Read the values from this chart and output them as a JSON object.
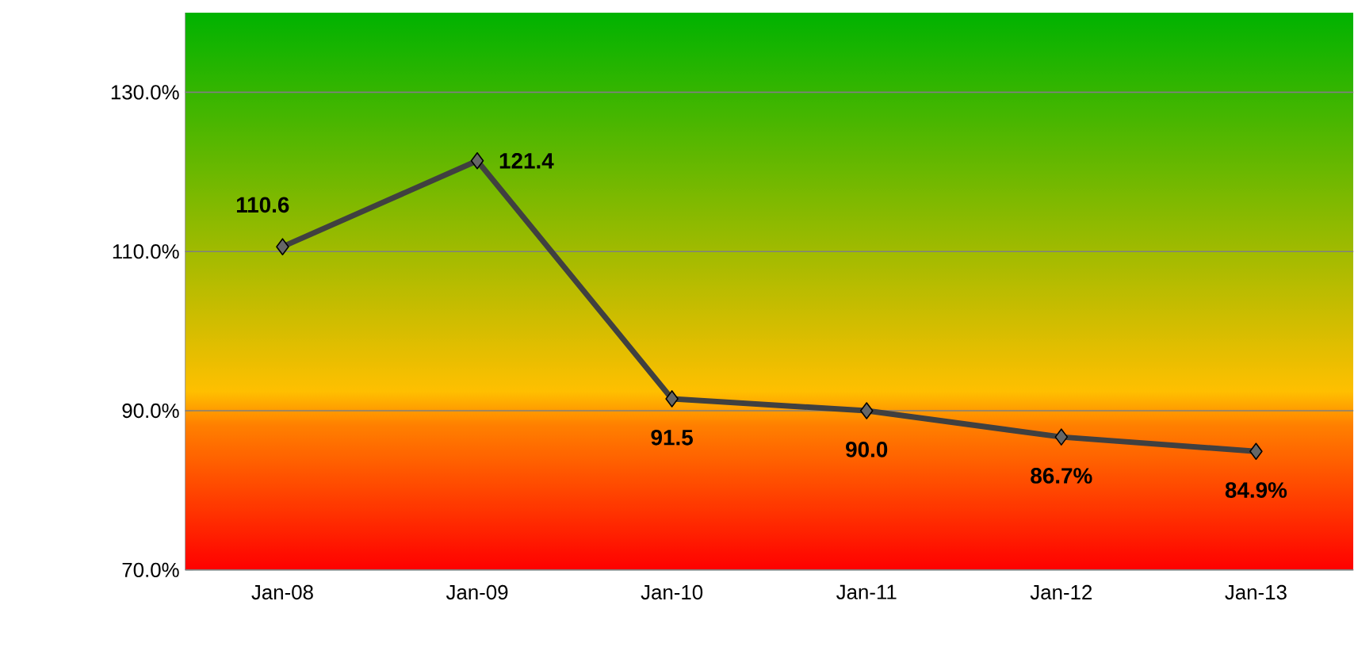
{
  "chart_data": {
    "type": "line",
    "categories": [
      "Jan-08",
      "Jan-09",
      "Jan-10",
      "Jan-11",
      "Jan-12",
      "Jan-13"
    ],
    "series": [
      {
        "color": "#404040",
        "values": [
          110.6,
          121.4,
          91.5,
          90.0,
          86.7,
          84.9
        ],
        "value_labels": [
          "110.6",
          "121.4",
          "91.5",
          "90.0",
          "86.7%",
          "84.9%"
        ]
      }
    ],
    "ylim": [
      70,
      140
    ],
    "yticks": [
      {
        "value": 70,
        "label": "70.0%"
      },
      {
        "value": 90,
        "label": "90.0%"
      },
      {
        "value": 110,
        "label": "110.0%"
      },
      {
        "value": 130,
        "label": "130.0%"
      }
    ],
    "grid": "y",
    "marker": "diamond",
    "line_style": "solid"
  }
}
